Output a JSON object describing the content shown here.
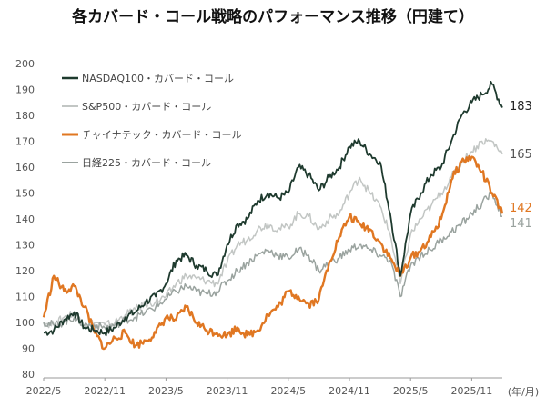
{
  "chart_data": {
    "type": "line",
    "title": "各カバード・コール戦略のパフォーマンス推移（円建て）",
    "xlabel": "",
    "ylabel": "",
    "x_unit_label": "(年/月)",
    "x_ticks": [
      "2022/5",
      "2022/11",
      "2023/5",
      "2023/11",
      "2024/5",
      "2024/11",
      "2025/5",
      "2025/11"
    ],
    "ylim": [
      80,
      200
    ],
    "y_ticks": [
      80,
      90,
      100,
      110,
      120,
      130,
      140,
      150,
      160,
      170,
      180,
      190,
      200
    ],
    "grid": false,
    "legend_placement": "top-left",
    "x": [
      "2022/5",
      "2022/6",
      "2022/7",
      "2022/8",
      "2022/9",
      "2022/10",
      "2022/11",
      "2022/12",
      "2023/1",
      "2023/2",
      "2023/3",
      "2023/4",
      "2023/5",
      "2023/6",
      "2023/7",
      "2023/8",
      "2023/9",
      "2023/10",
      "2023/11",
      "2023/12",
      "2024/1",
      "2024/2",
      "2024/3",
      "2024/4",
      "2024/5",
      "2024/6",
      "2024/7",
      "2024/8",
      "2024/9",
      "2024/10",
      "2024/11",
      "2024/12",
      "2025/1",
      "2025/2",
      "2025/3",
      "2025/4",
      "2025/5",
      "2025/6",
      "2025/7",
      "2025/8",
      "2025/9",
      "2025/10",
      "2025/11",
      "2025/12",
      "2026/1",
      "2026/2"
    ],
    "series": [
      {
        "name": "NASDAQ100・カバード・コール",
        "color": "#1e3a2e",
        "width": 1.8,
        "end_label": "183",
        "values": [
          96,
          97,
          101,
          104,
          98,
          97,
          96,
          98,
          102,
          104,
          108,
          110,
          115,
          124,
          126,
          122,
          120,
          118,
          130,
          138,
          140,
          147,
          150,
          148,
          150,
          160,
          157,
          151,
          156,
          160,
          168,
          170,
          165,
          162,
          142,
          118,
          142,
          150,
          157,
          160,
          170,
          180,
          185,
          188,
          192,
          183
        ]
      },
      {
        "name": "S&P500・カバード・コール",
        "color": "#c2c6c4",
        "width": 1.5,
        "end_label": "165",
        "values": [
          100,
          99,
          102,
          104,
          99,
          100,
          99,
          100,
          103,
          105,
          107,
          108,
          110,
          115,
          118,
          117,
          116,
          115,
          123,
          130,
          132,
          136,
          138,
          136,
          137,
          142,
          141,
          136,
          140,
          142,
          150,
          156,
          150,
          145,
          134,
          115,
          134,
          140,
          145,
          150,
          156,
          162,
          166,
          170,
          170,
          165
        ]
      },
      {
        "name": "チャイナテック・カバード・コール",
        "color": "#e07722",
        "width": 2.4,
        "end_label": "142",
        "values": [
          102,
          118,
          112,
          114,
          106,
          96,
          90,
          94,
          96,
          91,
          93,
          96,
          102,
          101,
          106,
          100,
          97,
          96,
          95,
          98,
          95,
          97,
          103,
          106,
          112,
          110,
          107,
          109,
          123,
          133,
          141,
          138,
          136,
          131,
          125,
          118,
          125,
          128,
          133,
          140,
          155,
          162,
          164,
          158,
          150,
          142
        ]
      },
      {
        "name": "日経225・カバード・コール",
        "color": "#9aa39f",
        "width": 1.5,
        "end_label": "141",
        "values": [
          100,
          99,
          100,
          102,
          99,
          99,
          98,
          99,
          101,
          102,
          104,
          106,
          109,
          112,
          114,
          112,
          111,
          112,
          116,
          120,
          123,
          126,
          128,
          126,
          125,
          128,
          126,
          120,
          123,
          125,
          128,
          130,
          128,
          126,
          124,
          110,
          122,
          126,
          128,
          132,
          135,
          138,
          142,
          146,
          150,
          141
        ]
      }
    ]
  }
}
